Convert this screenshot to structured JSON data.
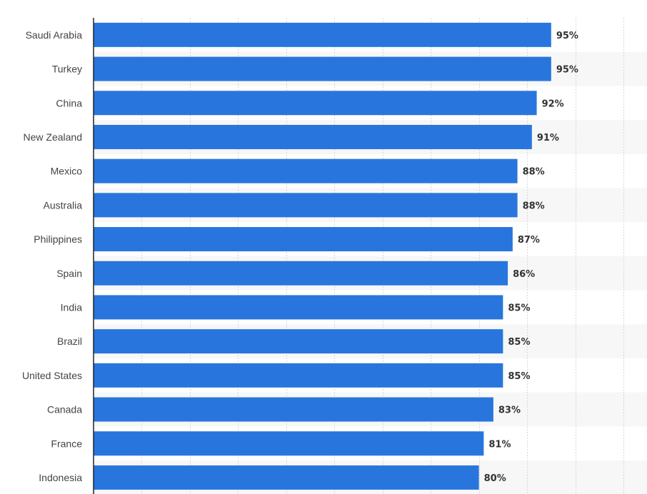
{
  "colors": {
    "bar": "#2876dd",
    "band": "#f7f7f7",
    "grid": "#d6d6d6",
    "axis": "#222222"
  },
  "chart_data": {
    "type": "bar",
    "orientation": "horizontal",
    "categories": [
      "Saudi Arabia",
      "Turkey",
      "China",
      "New Zealand",
      "Mexico",
      "Australia",
      "Philippines",
      "Spain",
      "India",
      "Brazil",
      "United States",
      "Canada",
      "France",
      "Indonesia"
    ],
    "values": [
      95,
      95,
      92,
      91,
      88,
      88,
      87,
      86,
      85,
      85,
      85,
      83,
      81,
      80
    ],
    "value_labels": [
      "95%",
      "95%",
      "92%",
      "91%",
      "88%",
      "88%",
      "87%",
      "86%",
      "85%",
      "85%",
      "85%",
      "83%",
      "81%",
      "80%"
    ],
    "xlim": [
      0,
      110
    ],
    "grid": true,
    "title": "",
    "xlabel": "",
    "ylabel": ""
  }
}
